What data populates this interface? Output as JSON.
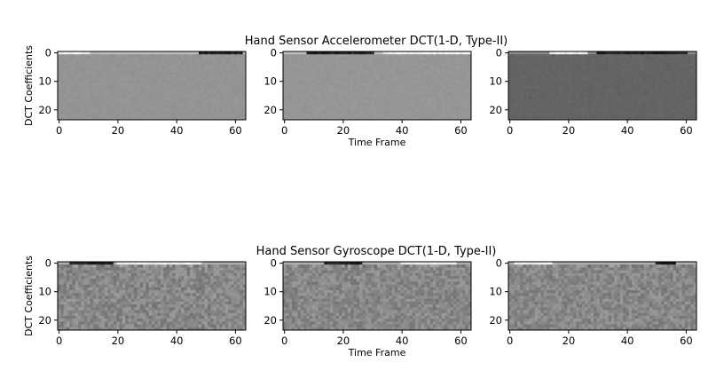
{
  "chart_data": [
    {
      "type": "heatmap",
      "group": "accelerometer",
      "title": "Hand Sensor Accelerometer DCT(1-D, Type-II)",
      "ylabel": "DCT Coefficients",
      "xlabel": "Time Frame",
      "x_range": [
        0,
        63
      ],
      "y_range": [
        0,
        23
      ],
      "xticks": [
        0,
        20,
        40,
        60
      ],
      "yticks": [
        0,
        10,
        20
      ],
      "panels": [
        {
          "base_gray": 148,
          "noise": 3,
          "row0_dark_between": [
            48,
            62
          ],
          "row0_bright_between": [
            0,
            10
          ]
        },
        {
          "base_gray": 150,
          "noise": 3,
          "row0_dark_between": [
            8,
            30
          ],
          "row0_bright_between": [
            34,
            63
          ]
        },
        {
          "base_gray": 100,
          "noise": 3,
          "row0_dark_between": [
            30,
            60
          ],
          "row0_bright_between": [
            14,
            26
          ]
        }
      ]
    },
    {
      "type": "heatmap",
      "group": "gyroscope",
      "title": "Hand Sensor Gyroscope DCT(1-D, Type-II)",
      "ylabel": "DCT Coefficients",
      "xlabel": "Time Frame",
      "x_range": [
        0,
        63
      ],
      "y_range": [
        0,
        23
      ],
      "xticks": [
        0,
        20,
        40,
        60
      ],
      "yticks": [
        0,
        10,
        20
      ],
      "panels": [
        {
          "base_gray": 135,
          "noise": 22,
          "row0_dark_between": [
            4,
            18
          ],
          "row0_bright_between": [
            20,
            48
          ]
        },
        {
          "base_gray": 135,
          "noise": 20,
          "row0_dark_between": [
            14,
            26
          ],
          "row0_bright_between": [
            40,
            58
          ]
        },
        {
          "base_gray": 135,
          "noise": 20,
          "row0_dark_between": [
            50,
            56
          ],
          "row0_bright_between": [
            2,
            14
          ]
        }
      ]
    }
  ]
}
